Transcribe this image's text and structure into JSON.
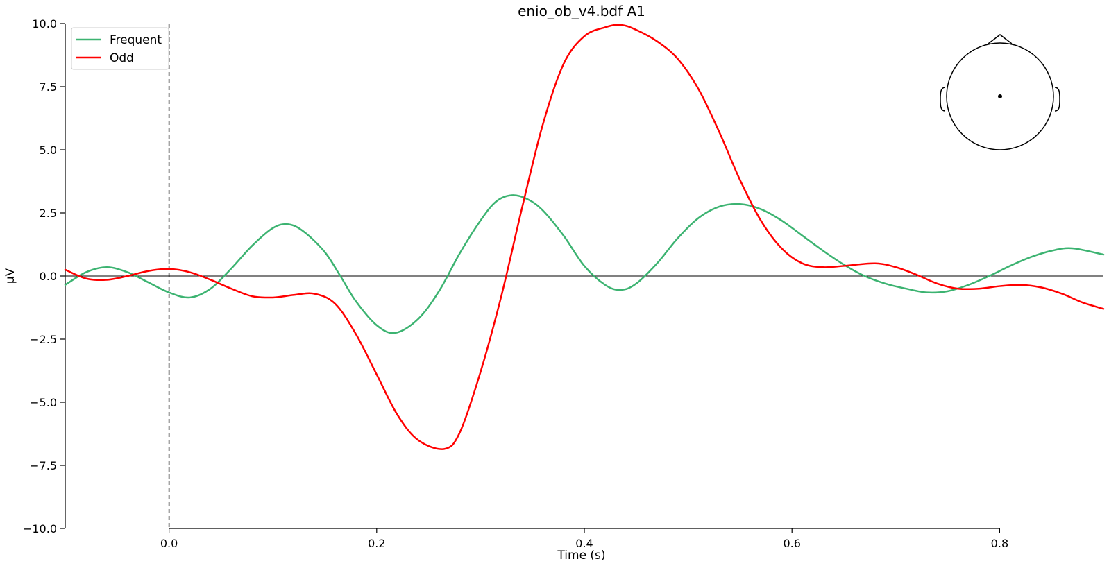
{
  "chart_data": {
    "type": "line",
    "title": "enio_ob_v4.bdf A1",
    "xlabel": "Time (s)",
    "ylabel": "µV",
    "xlim": [
      -0.1,
      0.9
    ],
    "ylim": [
      -10.0,
      10.0
    ],
    "x_ticks": [
      0.0,
      0.2,
      0.4,
      0.6,
      0.8
    ],
    "x_tick_labels": [
      "0.0",
      "0.2",
      "0.4",
      "0.6",
      "0.8"
    ],
    "y_ticks": [
      10.0,
      7.5,
      5.0,
      2.5,
      0.0,
      -2.5,
      -5.0,
      -7.5,
      -10.0
    ],
    "y_tick_labels": [
      "10.0",
      "7.5",
      "5.0",
      "2.5",
      "0.0",
      "−2.5",
      "−5.0",
      "−7.5",
      "−10.0"
    ],
    "grid": false,
    "legend": {
      "position": "top-left",
      "entries": [
        "Frequent",
        "Odd"
      ]
    },
    "zero_line": true,
    "event_marker_x": 0.0,
    "head_inset": {
      "position": "top-right",
      "sensor": "A1"
    },
    "series": [
      {
        "name": "Frequent",
        "color": "#3cb371",
        "x": [
          -0.1,
          -0.08,
          -0.06,
          -0.04,
          -0.02,
          0.0,
          0.02,
          0.04,
          0.06,
          0.08,
          0.1,
          0.115,
          0.13,
          0.15,
          0.165,
          0.18,
          0.2,
          0.218,
          0.24,
          0.26,
          0.28,
          0.3,
          0.315,
          0.33,
          0.345,
          0.36,
          0.38,
          0.4,
          0.42,
          0.435,
          0.45,
          0.47,
          0.49,
          0.51,
          0.53,
          0.55,
          0.57,
          0.59,
          0.61,
          0.63,
          0.65,
          0.67,
          0.69,
          0.71,
          0.73,
          0.75,
          0.77,
          0.79,
          0.81,
          0.83,
          0.85,
          0.87,
          0.9
        ],
        "y": [
          -0.35,
          0.15,
          0.35,
          0.15,
          -0.25,
          -0.65,
          -0.85,
          -0.5,
          0.3,
          1.2,
          1.9,
          2.05,
          1.75,
          0.95,
          0.0,
          -1.0,
          -1.95,
          -2.25,
          -1.7,
          -0.6,
          0.9,
          2.2,
          2.95,
          3.2,
          3.05,
          2.6,
          1.6,
          0.4,
          -0.35,
          -0.55,
          -0.3,
          0.5,
          1.5,
          2.3,
          2.75,
          2.85,
          2.65,
          2.2,
          1.6,
          1.0,
          0.45,
          0.0,
          -0.3,
          -0.5,
          -0.65,
          -0.6,
          -0.35,
          0.0,
          0.4,
          0.75,
          1.0,
          1.1,
          0.85
        ]
      },
      {
        "name": "Odd",
        "color": "#ff0000",
        "x": [
          -0.1,
          -0.08,
          -0.06,
          -0.04,
          -0.02,
          0.0,
          0.02,
          0.04,
          0.06,
          0.08,
          0.1,
          0.12,
          0.14,
          0.16,
          0.18,
          0.2,
          0.22,
          0.24,
          0.265,
          0.28,
          0.3,
          0.32,
          0.34,
          0.36,
          0.38,
          0.4,
          0.42,
          0.435,
          0.45,
          0.47,
          0.49,
          0.51,
          0.53,
          0.55,
          0.57,
          0.59,
          0.61,
          0.63,
          0.65,
          0.68,
          0.7,
          0.72,
          0.74,
          0.76,
          0.78,
          0.8,
          0.82,
          0.84,
          0.86,
          0.88,
          0.9
        ],
        "y": [
          0.25,
          -0.1,
          -0.15,
          0.0,
          0.2,
          0.28,
          0.15,
          -0.15,
          -0.5,
          -0.8,
          -0.85,
          -0.75,
          -0.7,
          -1.1,
          -2.3,
          -3.9,
          -5.5,
          -6.5,
          -6.85,
          -6.2,
          -3.8,
          -0.8,
          2.7,
          6.0,
          8.4,
          9.5,
          9.85,
          9.95,
          9.75,
          9.3,
          8.6,
          7.4,
          5.7,
          3.8,
          2.2,
          1.1,
          0.5,
          0.35,
          0.4,
          0.5,
          0.35,
          0.05,
          -0.3,
          -0.5,
          -0.5,
          -0.4,
          -0.35,
          -0.45,
          -0.7,
          -1.05,
          -1.3
        ]
      }
    ]
  }
}
